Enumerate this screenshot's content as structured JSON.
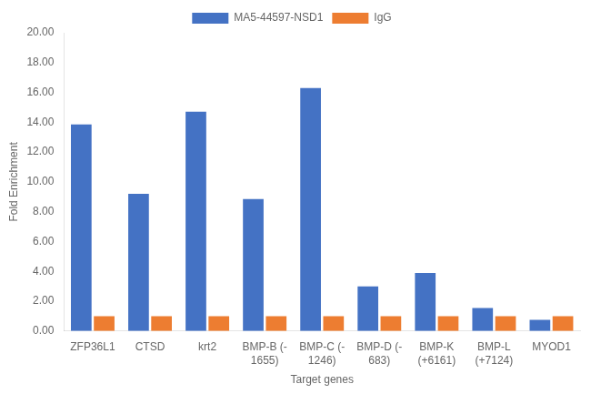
{
  "chart_data": {
    "type": "bar",
    "categories": [
      "ZFP36L1",
      "CTSD",
      "krt2",
      "BMP-B (-\n1655)",
      "BMP-C (-\n1246)",
      "BMP-D (-\n683)",
      "BMP-K\n(+6161)",
      "BMP-L\n(+7124)",
      "MYOD1"
    ],
    "series": [
      {
        "name": "MA5-44597-NSD1",
        "color": "#4472C4",
        "values": [
          13.85,
          9.2,
          14.7,
          8.85,
          16.3,
          3.0,
          3.9,
          1.55,
          0.75
        ]
      },
      {
        "name": "IgG",
        "color": "#ED7D31",
        "values": [
          1.0,
          1.0,
          1.0,
          1.0,
          1.0,
          1.0,
          1.0,
          1.0,
          1.0
        ]
      }
    ],
    "xlabel": "Target genes",
    "ylabel": "Fold Enrichment",
    "ylim": [
      0,
      20.0
    ],
    "yticks": [
      {
        "value": 0,
        "label": "0.00"
      },
      {
        "value": 2,
        "label": "2.00"
      },
      {
        "value": 4,
        "label": "4.00"
      },
      {
        "value": 6,
        "label": "6.00"
      },
      {
        "value": 8,
        "label": "8.00"
      },
      {
        "value": 10,
        "label": "10.00"
      },
      {
        "value": 12,
        "label": "12.00"
      },
      {
        "value": 14,
        "label": "14.00"
      },
      {
        "value": 16,
        "label": "16.00"
      },
      {
        "value": 18,
        "label": "18.00"
      },
      {
        "value": 20,
        "label": "20.00"
      }
    ],
    "grid": false,
    "legend": "top"
  }
}
